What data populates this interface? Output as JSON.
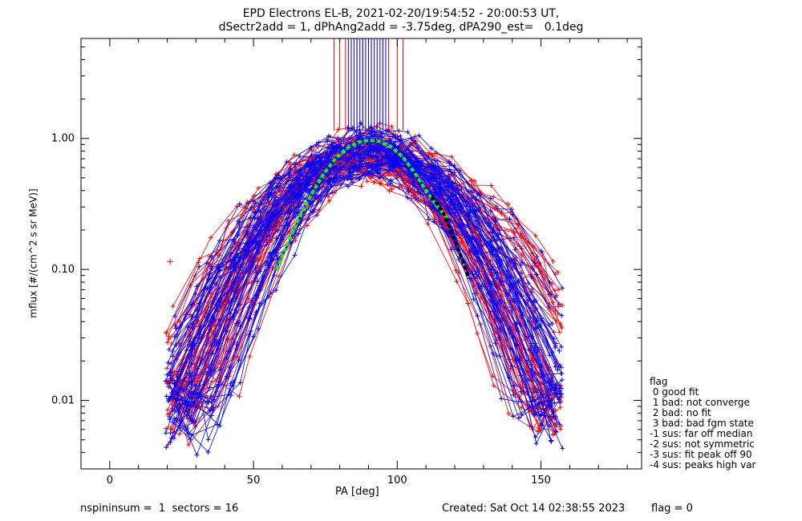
{
  "chart_data": {
    "type": "line",
    "title_line1": "EPD Electrons EL-B, 2021-02-20/19:54:52 - 20:00:53 UT,",
    "title_line2": "dSectr2add = 1, dPhAng2add = -3.75deg, dPA290_est=   0.1deg",
    "xlabel": "PA [deg]",
    "ylabel": "mflux [#/(cm^2 s sr MeV)]",
    "xlim": [
      -10,
      185
    ],
    "ylim": [
      0.003,
      5.8
    ],
    "yscale": "log",
    "x_ticks": [
      0,
      50,
      100,
      150
    ],
    "x_tick_labels": [
      "0",
      "50",
      "100",
      "150"
    ],
    "y_ticks": [
      0.01,
      0.1,
      1.0
    ],
    "y_tick_labels": [
      "0.01",
      "0.10",
      "1.00"
    ],
    "colors": {
      "red": "#ff0000",
      "blue": "#0000ff",
      "green": "#00ff00",
      "black": "#000000"
    },
    "spectra_model": {
      "red": {
        "count": 60,
        "peak_pa_range": [
          84,
          96
        ],
        "peak_flux_range": [
          0.55,
          1.05
        ],
        "width_deg_range": [
          17,
          27
        ]
      },
      "blue": {
        "count": 60,
        "peak_pa_range": [
          84,
          96
        ],
        "peak_flux_range": [
          0.55,
          1.05
        ],
        "width_deg_range": [
          17,
          27
        ]
      },
      "pa_samples": [
        22,
        29,
        36,
        43,
        50,
        57,
        64,
        71,
        78,
        85,
        92,
        99,
        106,
        113,
        120,
        127,
        134,
        141,
        148,
        155
      ]
    },
    "series": [
      {
        "name": "",
        "color": "green",
        "style": "dashed",
        "points": [
          [
            58,
            0.1
          ],
          [
            62,
            0.16
          ],
          [
            66,
            0.25
          ],
          [
            70,
            0.37
          ],
          [
            74,
            0.52
          ],
          [
            78,
            0.68
          ],
          [
            82,
            0.83
          ],
          [
            86,
            0.93
          ],
          [
            90,
            0.97
          ],
          [
            94,
            0.95
          ],
          [
            98,
            0.86
          ],
          [
            102,
            0.72
          ],
          [
            106,
            0.55
          ],
          [
            110,
            0.4
          ],
          [
            114,
            0.3
          ],
          [
            118,
            0.24
          ]
        ]
      },
      {
        "name": "",
        "color": "black",
        "style": "dashed",
        "points": [
          [
            112,
            0.36
          ],
          [
            116,
            0.27
          ],
          [
            119,
            0.19
          ],
          [
            122,
            0.13
          ],
          [
            125,
            0.085
          ]
        ]
      },
      {
        "name": "",
        "color": "red",
        "style": "markers",
        "points": [
          [
            21,
            0.115
          ],
          [
            156,
            0.052
          ]
        ]
      }
    ],
    "vertical_spikes": {
      "red": [
        78,
        80,
        82,
        86,
        88,
        91,
        95,
        97,
        100,
        102
      ],
      "blue": [
        83,
        84,
        85,
        86,
        87,
        88,
        89,
        90,
        91,
        92,
        93,
        94,
        95,
        96
      ]
    },
    "legend": {
      "title": "flag",
      "items": [
        " 0 good fit",
        " 1 bad: not converge",
        " 2 bad: no fit",
        " 3 bad: bad fgm state",
        "-1 sus: far off median",
        "-2 sus: not symmetric",
        "-3 sus: fit peak off 90",
        "-4 sus: peaks high var"
      ],
      "placement": "right"
    },
    "footer": {
      "left": "nspininsum =  1  sectors = 16",
      "created": "Created: Sat Oct 14 02:38:55 2023",
      "flag": "flag = 0"
    }
  }
}
